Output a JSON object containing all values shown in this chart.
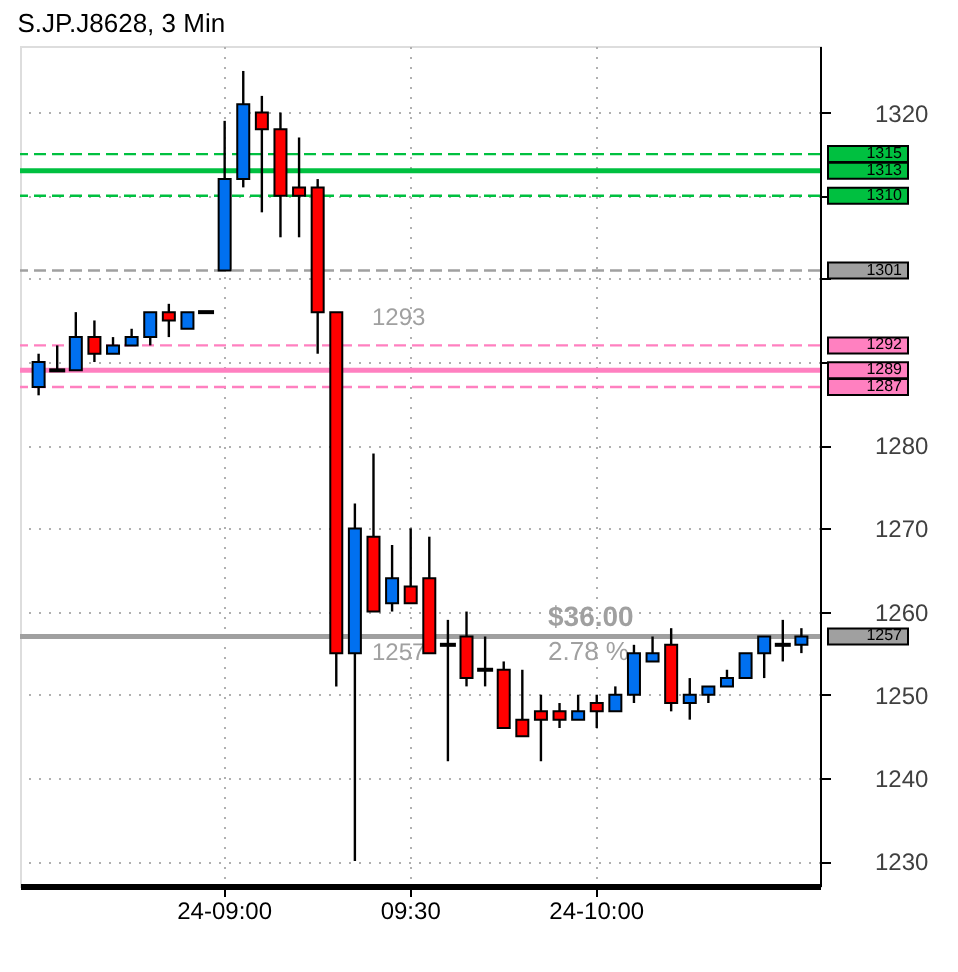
{
  "chart_data": {
    "type": "candlestick",
    "title": "S.JP.J8628, 3 Min",
    "categories": [
      null,
      null,
      null,
      null,
      null,
      null,
      null,
      null,
      null,
      null,
      "24-09:00",
      null,
      null,
      null,
      null,
      null,
      null,
      null,
      null,
      null,
      "09:30",
      null,
      null,
      null,
      null,
      null,
      null,
      null,
      null,
      null,
      "24-10:00",
      null,
      null,
      null,
      null,
      null,
      null,
      null,
      null,
      null,
      null,
      null
    ],
    "ohlc": [
      [
        1287,
        1291,
        1286,
        1290
      ],
      [
        1289,
        1292,
        1289,
        1289
      ],
      [
        1289,
        1296,
        1289,
        1293
      ],
      [
        1293,
        1295,
        1290,
        1291
      ],
      [
        1291,
        1293,
        1291,
        1292
      ],
      [
        1292,
        1294,
        1292,
        1293
      ],
      [
        1293,
        1296,
        1292,
        1296
      ],
      [
        1296,
        1297,
        1293,
        1295
      ],
      [
        1294,
        1296,
        1294,
        1296
      ],
      [
        1296,
        1296,
        1296,
        1296
      ],
      [
        1301,
        1319,
        1301,
        1312
      ],
      [
        1312,
        1325,
        1311,
        1321
      ],
      [
        1320,
        1322,
        1308,
        1318
      ],
      [
        1318,
        1320,
        1305,
        1310
      ],
      [
        1311,
        1317,
        1305,
        1310
      ],
      [
        1311,
        1312,
        1291,
        1296
      ],
      [
        1296,
        1296,
        1251,
        1255
      ],
      [
        1255,
        1273,
        1230,
        1270
      ],
      [
        1269,
        1279,
        1260,
        1260
      ],
      [
        1261,
        1268,
        1260,
        1264
      ],
      [
        1263,
        1270,
        1261,
        1261
      ],
      [
        1264,
        1269,
        1255,
        1255
      ],
      [
        1256,
        1259,
        1242,
        1256
      ],
      [
        1257,
        1260,
        1251,
        1252
      ],
      [
        1253,
        1257,
        1251,
        1253
      ],
      [
        1253,
        1254,
        1246,
        1246
      ],
      [
        1247,
        1253,
        1245,
        1245
      ],
      [
        1248,
        1250,
        1242,
        1247
      ],
      [
        1248,
        1249,
        1246,
        1247
      ],
      [
        1247,
        1250,
        1247,
        1248
      ],
      [
        1249,
        1250,
        1246,
        1248
      ],
      [
        1248,
        1251,
        1248,
        1250
      ],
      [
        1250,
        1256,
        1249,
        1255
      ],
      [
        1254,
        1257,
        1254,
        1255
      ],
      [
        1256,
        1258,
        1248,
        1249
      ],
      [
        1249,
        1252,
        1247,
        1250
      ],
      [
        1250,
        1251,
        1249,
        1251
      ],
      [
        1251,
        1253,
        1251,
        1252
      ],
      [
        1252,
        1255,
        1252,
        1255
      ],
      [
        1255,
        1257,
        1252,
        1257
      ],
      [
        1256,
        1259,
        1254,
        1256
      ],
      [
        1256,
        1258,
        1255,
        1257
      ]
    ],
    "colors": [
      "#0070f0",
      "#000000",
      "#0070f0",
      "#ff0000",
      "#0070f0",
      "#0070f0",
      "#0070f0",
      "#ff0000",
      "#0070f0",
      "#000000",
      "#0070f0",
      "#0070f0",
      "#ff0000",
      "#ff0000",
      "#ff0000",
      "#ff0000",
      "#ff0000",
      "#0070f0",
      "#ff0000",
      "#0070f0",
      "#ff0000",
      "#ff0000",
      "#000000",
      "#ff0000",
      "#000000",
      "#ff0000",
      "#ff0000",
      "#ff0000",
      "#ff0000",
      "#0070f0",
      "#ff0000",
      "#0070f0",
      "#0070f0",
      "#0070f0",
      "#ff0000",
      "#0070f0",
      "#0070f0",
      "#0070f0",
      "#0070f0",
      "#0070f0",
      "#000000",
      "#0070f0"
    ],
    "ylim": [
      1227,
      1328
    ],
    "yticks": [
      1230,
      1240,
      1250,
      1260,
      1270,
      1280,
      {
        "value": 1290,
        "label": null
      },
      {
        "value": 1300,
        "label": null
      },
      {
        "value": 1310,
        "label": null
      },
      1320
    ],
    "grid": true,
    "ref_lines": [
      {
        "axis": "y",
        "value": 1315,
        "label": "1315",
        "color": "#00c040",
        "line_style": "dashed"
      },
      {
        "axis": "y",
        "value": 1313,
        "label": "1313",
        "color": "#00c040",
        "line_style": "solid"
      },
      {
        "axis": "y",
        "value": 1310,
        "label": "1310",
        "color": "#00c040",
        "line_style": "dashed"
      },
      {
        "axis": "y",
        "value": 1301,
        "label": "1301",
        "color": "#a0a0a0",
        "line_style": "dashed"
      },
      {
        "axis": "y",
        "value": 1292,
        "label": "1292",
        "color": "#ff80c0",
        "line_style": "dashed"
      },
      {
        "axis": "y",
        "value": 1289,
        "label": "1289",
        "color": "#ff80c0",
        "line_style": "solid"
      },
      {
        "axis": "y",
        "value": 1287,
        "label": "1287",
        "color": "#ff80c0",
        "line_style": "dashed"
      },
      {
        "axis": "y",
        "value": 1257,
        "label": "1257",
        "color": "#a0a0a0",
        "line_style": "solid"
      }
    ],
    "annotations": [
      {
        "text": "1293",
        "y": 1293
      },
      {
        "text": "1257",
        "y": 1257
      },
      {
        "text": "$36.00",
        "y": 1257
      },
      {
        "text": "2.78 %",
        "y": 1257
      }
    ]
  }
}
